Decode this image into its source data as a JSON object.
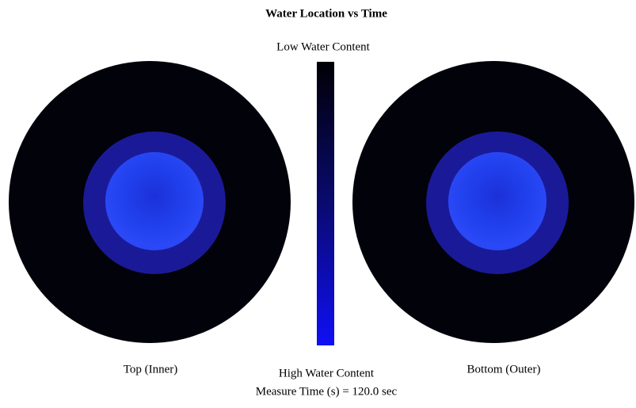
{
  "header": {
    "title": "Water Location vs Time"
  },
  "legend": {
    "low": "Low Water Content",
    "high": "High Water Content"
  },
  "panels": [
    {
      "label": "Top (Inner)"
    },
    {
      "label": "Bottom (Outer)"
    }
  ],
  "footer": {
    "measure_time": "Measure Time (s) = 120.0 sec"
  }
}
